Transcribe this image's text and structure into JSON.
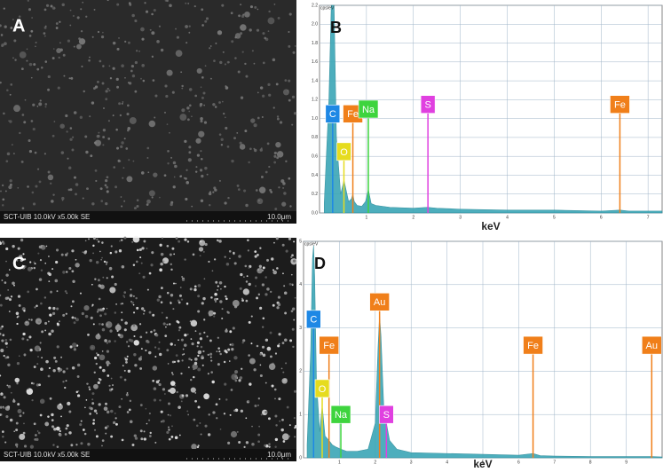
{
  "images": [
    {
      "panel_label": "A",
      "caption": "SCT-UIB 10.0kV x5.00k SE",
      "scale": "10.0μm"
    },
    {
      "panel_label": "C",
      "caption": "SCT-UIB 10.0kV x5.00k SE",
      "scale": "10.0μm"
    }
  ],
  "chart_data": [
    {
      "type": "area",
      "panel_label": "B",
      "y_label": "cps/eV",
      "x_label": "keV",
      "color": "#3aa6b6",
      "grid": true,
      "x": [
        0.1,
        0.2,
        0.25,
        0.28,
        0.31,
        0.36,
        0.45,
        0.5,
        0.52,
        0.55,
        0.62,
        0.68,
        0.71,
        0.74,
        0.8,
        0.9,
        0.98,
        1.04,
        1.1,
        1.2,
        1.5,
        2.0,
        2.3,
        2.5,
        3.0,
        4.0,
        5.0,
        6.0,
        6.4,
        6.6,
        7.0,
        7.3
      ],
      "values": [
        0.1,
        1.2,
        2.2,
        2.2,
        2.2,
        0.8,
        0.2,
        0.3,
        0.35,
        0.28,
        0.12,
        0.15,
        0.2,
        0.12,
        0.08,
        0.07,
        0.12,
        0.25,
        0.1,
        0.08,
        0.06,
        0.05,
        0.06,
        0.05,
        0.04,
        0.03,
        0.03,
        0.02,
        0.03,
        0.02,
        0.02,
        0.02
      ],
      "xlim": [
        0,
        7.3
      ],
      "xticks": [
        1,
        2,
        3,
        4,
        5,
        6,
        7
      ],
      "ylim": [
        0,
        2.2
      ],
      "yticks": [
        {
          "value": 0,
          "label": "0.0"
        },
        {
          "value": 0.2,
          "label": "0.2"
        },
        {
          "value": 0.4,
          "label": "0.4"
        },
        {
          "value": 0.6,
          "label": "0.6"
        },
        {
          "value": 0.8,
          "label": "0.8"
        },
        {
          "value": 1,
          "label": "1.0"
        },
        {
          "value": 1.2,
          "label": "1.2"
        },
        {
          "value": 1.4,
          "label": "1.4"
        },
        {
          "value": 1.6,
          "label": "1.6"
        },
        {
          "value": 1.8,
          "label": "1.8"
        },
        {
          "value": 2,
          "label": "2.0"
        },
        {
          "value": 2.2,
          "label": "2.2"
        }
      ],
      "markers": [
        {
          "label": "C",
          "x": 0.28,
          "y": 1.05,
          "color": "#1e88e5"
        },
        {
          "label": "Fe",
          "x": 0.71,
          "y": 1.05,
          "color": "#f07f1a"
        },
        {
          "label": "O",
          "x": 0.52,
          "y": 0.65,
          "color": "#e6dc1e"
        },
        {
          "label": "Na",
          "x": 1.04,
          "y": 1.1,
          "color": "#3ed43e"
        },
        {
          "label": "S",
          "x": 2.31,
          "y": 1.15,
          "color": "#e040e0"
        },
        {
          "label": "Fe",
          "x": 6.4,
          "y": 1.15,
          "color": "#f07f1a"
        }
      ]
    },
    {
      "type": "area",
      "panel_label": "D",
      "y_label": "cps/eV",
      "x_label": "keV",
      "color": "#3aa6b6",
      "grid": true,
      "x": [
        0.1,
        0.2,
        0.25,
        0.28,
        0.31,
        0.36,
        0.45,
        0.52,
        0.6,
        0.71,
        0.8,
        0.9,
        1.04,
        1.2,
        1.5,
        1.8,
        2.0,
        2.08,
        2.12,
        2.16,
        2.25,
        2.31,
        2.4,
        2.6,
        3.0,
        4.0,
        5.0,
        6.0,
        6.4,
        6.6,
        7.0,
        8.0,
        9.0,
        9.7,
        10.0
      ],
      "values": [
        0.3,
        2.5,
        4.6,
        4.9,
        4.2,
        1.8,
        0.6,
        1.2,
        0.5,
        0.4,
        0.3,
        0.25,
        0.2,
        0.15,
        0.15,
        0.2,
        0.8,
        2.6,
        3.3,
        2.8,
        0.9,
        0.8,
        0.4,
        0.2,
        0.12,
        0.1,
        0.08,
        0.06,
        0.1,
        0.05,
        0.04,
        0.03,
        0.03,
        0.03,
        0.02
      ],
      "xlim": [
        0,
        10
      ],
      "xticks": [
        1,
        2,
        3,
        4,
        5,
        6,
        7,
        8,
        9
      ],
      "ylim": [
        0,
        5
      ],
      "yticks": [
        0,
        1,
        2,
        3,
        4,
        5
      ],
      "markers": [
        {
          "label": "C",
          "x": 0.28,
          "y": 3.2,
          "color": "#1e88e5"
        },
        {
          "label": "Fe",
          "x": 0.71,
          "y": 2.6,
          "color": "#f07f1a"
        },
        {
          "label": "O",
          "x": 0.52,
          "y": 1.6,
          "color": "#e6dc1e"
        },
        {
          "label": "Au",
          "x": 2.12,
          "y": 3.6,
          "color": "#f07f1a"
        },
        {
          "label": "Na",
          "x": 1.04,
          "y": 1.0,
          "color": "#3ed43e"
        },
        {
          "label": "S",
          "x": 2.31,
          "y": 1.0,
          "color": "#e040e0"
        },
        {
          "label": "Fe",
          "x": 6.4,
          "y": 2.6,
          "color": "#f07f1a"
        },
        {
          "label": "Au",
          "x": 9.71,
          "y": 2.6,
          "color": "#f07f1a"
        }
      ]
    }
  ]
}
